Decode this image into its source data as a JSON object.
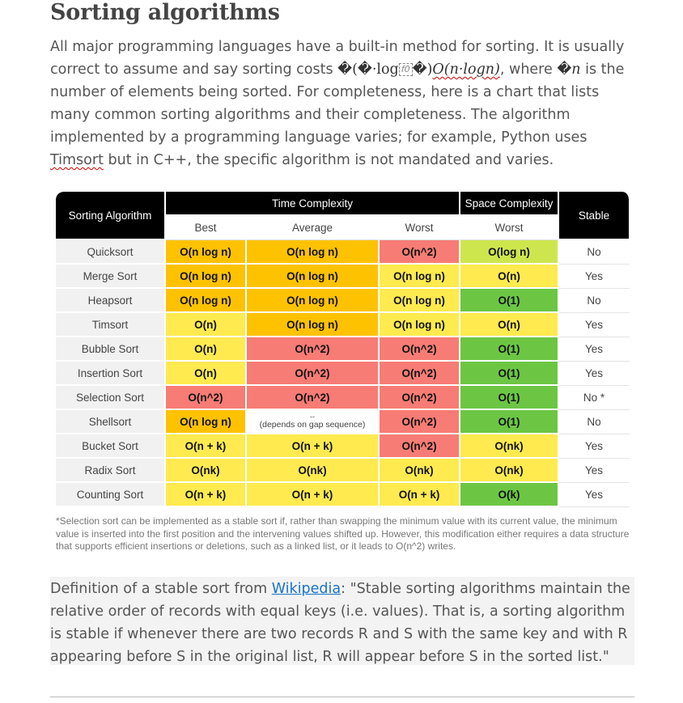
{
  "page": {
    "title": "Sorting algorithms",
    "intro": {
      "p1": "All major programming languages have a built-in method for sorting. It is usually correct to assume and say sorting costs ",
      "garbled_1": "�(�·log",
      "f0": "f0",
      "garbled_2": "�)",
      "formula": "O(n·logn)",
      "p2": ", where ",
      "garbled_n": "�",
      "n": "n",
      "p3": " is the number of elements being sorted. For completeness, here is a chart that lists many common sorting algorithms and their completeness. The algorithm implemented by a programming language varies; for example, Python uses ",
      "timsort": "Timsort",
      "p4": " but in C++, the specific algorithm is not mandated and varies."
    },
    "table": {
      "header_algo": "Sorting Algorithm",
      "header_time": "Time Complexity",
      "header_space": "Space Complexity",
      "header_stable": "Stable",
      "sub_best": "Best",
      "sub_average": "Average",
      "sub_worst": "Worst",
      "sub_space_worst": "Worst",
      "rows": [
        {
          "name": "Quicksort",
          "best": "O(n log n)",
          "avg": "O(n log n)",
          "worst": "O(n^2)",
          "space": "O(log n)",
          "stable": "No"
        },
        {
          "name": "Merge Sort",
          "best": "O(n log n)",
          "avg": "O(n log n)",
          "worst": "O(n log n)",
          "space": "O(n)",
          "stable": "Yes"
        },
        {
          "name": "Heapsort",
          "best": "O(n log n)",
          "avg": "O(n log n)",
          "worst": "O(n log n)",
          "space": "O(1)",
          "stable": "No"
        },
        {
          "name": "Timsort",
          "best": "O(n)",
          "avg": "O(n log n)",
          "worst": "O(n log n)",
          "space": "O(n)",
          "stable": "Yes"
        },
        {
          "name": "Bubble Sort",
          "best": "O(n)",
          "avg": "O(n^2)",
          "worst": "O(n^2)",
          "space": "O(1)",
          "stable": "Yes"
        },
        {
          "name": "Insertion Sort",
          "best": "O(n)",
          "avg": "O(n^2)",
          "worst": "O(n^2)",
          "space": "O(1)",
          "stable": "Yes"
        },
        {
          "name": "Selection Sort",
          "best": "O(n^2)",
          "avg": "O(n^2)",
          "worst": "O(n^2)",
          "space": "O(1)",
          "stable": "No *"
        },
        {
          "name": "Shellsort",
          "best": "O(n log n)",
          "avg_dash": "--",
          "avg_note": "(depends on gap sequence)",
          "worst": "O(n^2)",
          "space": "O(1)",
          "stable": "No"
        },
        {
          "name": "Bucket Sort",
          "best": "O(n + k)",
          "avg": "O(n + k)",
          "worst": "O(n^2)",
          "space": "O(nk)",
          "stable": "Yes"
        },
        {
          "name": "Radix Sort",
          "best": "O(nk)",
          "avg": "O(nk)",
          "worst": "O(nk)",
          "space": "O(nk)",
          "stable": "Yes"
        },
        {
          "name": "Counting Sort",
          "best": "O(n + k)",
          "avg": "O(n + k)",
          "worst": "O(n + k)",
          "space": "O(k)",
          "stable": "Yes"
        }
      ],
      "colors": {
        "orange": "#ffc200",
        "yellow": "#ffea4f",
        "red": "#f77c75",
        "lime": "#cde64e",
        "green": "#6cc644"
      },
      "cell_colors": [
        [
          "orange",
          "orange",
          "red",
          "lime"
        ],
        [
          "orange",
          "orange",
          "yellow",
          "yellow"
        ],
        [
          "orange",
          "orange",
          "yellow",
          "green"
        ],
        [
          "yellow",
          "orange",
          "yellow",
          "yellow"
        ],
        [
          "yellow",
          "red",
          "red",
          "green"
        ],
        [
          "yellow",
          "red",
          "red",
          "green"
        ],
        [
          "red",
          "red",
          "red",
          "green"
        ],
        [
          "orange",
          "white",
          "red",
          "green"
        ],
        [
          "yellow",
          "yellow",
          "red",
          "yellow"
        ],
        [
          "yellow",
          "yellow",
          "yellow",
          "yellow"
        ],
        [
          "yellow",
          "yellow",
          "yellow",
          "green"
        ]
      ]
    },
    "footnote": "*Selection sort can be implemented as a stable sort if, rather than swapping the minimum value with its current value, the minimum value is inserted into the first position and the intervening values shifted up. However, this modification either requires a data structure that supports efficient insertions or deletions, such as a linked list, or it leads to O(n^2) writes.",
    "definition": {
      "prefix": "Definition of a stable sort from ",
      "link": "Wikipedia",
      "quote": ": \"Stable sorting algorithms maintain the relative order of records with equal keys (i.e. values). That is, a sorting algorithm is stable if whenever there are two records R and S with the same key and with R appearing before S in the original list, R will appear before S in the sorted list.\""
    }
  }
}
